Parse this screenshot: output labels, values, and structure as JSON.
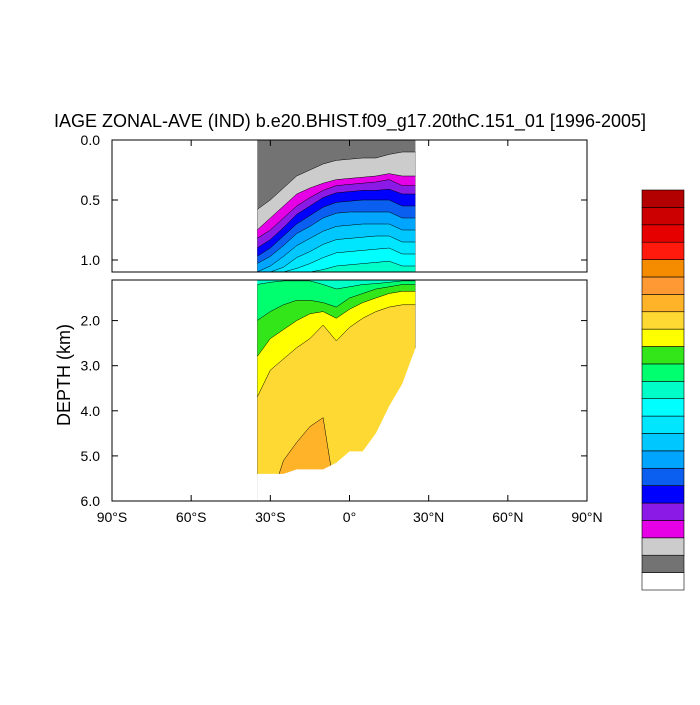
{
  "chart_data": {
    "type": "heatmap",
    "title": "IAGE ZONAL-AVE (IND) b.e20.BHIST.f09_g17.20thC.151_01 [1996-2005]",
    "xlabel": "",
    "ylabel": "DEPTH (km)",
    "xlim": [
      -90,
      90
    ],
    "ylim": [
      6.0,
      0.0
    ],
    "x_tick_labels": [
      {
        "value": -90,
        "label": "90°S"
      },
      {
        "value": -60,
        "label": "60°S"
      },
      {
        "value": -30,
        "label": "30°S"
      },
      {
        "value": 0,
        "label": "0°"
      },
      {
        "value": 30,
        "label": "30°N"
      },
      {
        "value": 60,
        "label": "60°N"
      },
      {
        "value": 90,
        "label": "90°N"
      }
    ],
    "upper_panel_y_ticks": [
      {
        "value": 0.0,
        "label": "0.0"
      },
      {
        "value": 0.5,
        "label": "0.5"
      },
      {
        "value": 1.0,
        "label": "1.0"
      }
    ],
    "lower_panel_y_ticks": [
      {
        "value": 2.0,
        "label": "2.0"
      },
      {
        "value": 3.0,
        "label": "3.0"
      },
      {
        "value": 4.0,
        "label": "4.0"
      },
      {
        "value": 5.0,
        "label": "5.0"
      },
      {
        "value": 6.0,
        "label": "6.0"
      }
    ],
    "panels": [
      {
        "name": "upper",
        "depth_range": [
          0.0,
          1.1
        ]
      },
      {
        "name": "lower",
        "depth_range": [
          1.1,
          6.0
        ]
      }
    ],
    "colorbar": {
      "placement": "right",
      "label_text": "",
      "colors": [
        "#ffffff",
        "#737373",
        "#cccccc",
        "#e600e6",
        "#8c1ae6",
        "#0000ff",
        "#0a5ff0",
        "#00a5ff",
        "#00c8ff",
        "#00e6ff",
        "#00ffff",
        "#00ffc8",
        "#00ff6e",
        "#32e619",
        "#ffff00",
        "#ffd933",
        "#ffb329",
        "#ff9933",
        "#f58c00",
        "#ff1a0d",
        "#e60000",
        "#cc0000",
        "#b30000"
      ]
    },
    "shelves": [
      {
        "x_from": -35,
        "x_to": -30,
        "min": 1
      },
      {
        "x_from": -30,
        "x_to": -25,
        "min": 1
      },
      {
        "x_from": -25,
        "x_to": -20,
        "min": 1
      },
      {
        "x_from": -20,
        "x_to": -15,
        "min": 1
      },
      {
        "x_from": -15,
        "x_to": -10,
        "min": 1
      },
      {
        "x_from": -10,
        "x_to": -5,
        "min": 1
      },
      {
        "x_from": -5,
        "x_to": 0,
        "min": 1
      },
      {
        "x_from": 0,
        "x_to": 5,
        "min": 1
      },
      {
        "x_from": 5,
        "x_to": 10,
        "min": 1
      },
      {
        "x_from": 10,
        "x_to": 15,
        "min": 1
      },
      {
        "x_from": 15,
        "x_to": 20,
        "min": 1
      },
      {
        "x_from": 20,
        "x_to": 25,
        "min": 1
      }
    ],
    "upper_panel_contours": [
      {
        "level_index": 1,
        "depth": [
          0.58,
          0.5,
          0.4,
          0.3,
          0.25,
          0.2,
          0.17,
          0.16,
          0.15,
          0.15,
          0.12,
          0.1
        ],
        "x": [
          -35,
          -30,
          -25,
          -20,
          -15,
          -10,
          -5,
          0,
          5,
          10,
          15,
          20
        ]
      },
      {
        "level_index": 2,
        "depth": [
          0.75,
          0.65,
          0.55,
          0.45,
          0.4,
          0.36,
          0.33,
          0.32,
          0.31,
          0.3,
          0.28,
          0.3
        ],
        "x": [
          -35,
          -30,
          -25,
          -20,
          -15,
          -10,
          -5,
          0,
          5,
          10,
          15,
          20
        ]
      },
      {
        "level_index": 3,
        "depth": [
          0.82,
          0.75,
          0.65,
          0.55,
          0.48,
          0.42,
          0.38,
          0.37,
          0.36,
          0.35,
          0.33,
          0.38
        ],
        "x": [
          -35,
          -30,
          -25,
          -20,
          -15,
          -10,
          -5,
          0,
          5,
          10,
          15,
          20
        ]
      },
      {
        "level_index": 4,
        "depth": [
          0.9,
          0.83,
          0.73,
          0.62,
          0.55,
          0.48,
          0.44,
          0.43,
          0.42,
          0.42,
          0.41,
          0.45
        ],
        "x": [
          -35,
          -30,
          -25,
          -20,
          -15,
          -10,
          -5,
          0,
          5,
          10,
          15,
          20
        ]
      },
      {
        "level_index": 5,
        "depth": [
          0.97,
          0.9,
          0.8,
          0.7,
          0.63,
          0.56,
          0.52,
          0.51,
          0.5,
          0.5,
          0.5,
          0.55
        ],
        "x": [
          -35,
          -30,
          -25,
          -20,
          -15,
          -10,
          -5,
          0,
          5,
          10,
          15,
          20
        ]
      },
      {
        "level_index": 6,
        "depth": [
          1.03,
          0.97,
          0.88,
          0.78,
          0.72,
          0.65,
          0.61,
          0.6,
          0.6,
          0.6,
          0.6,
          0.65
        ],
        "x": [
          -35,
          -30,
          -25,
          -20,
          -15,
          -10,
          -5,
          0,
          5,
          10,
          15,
          20
        ]
      },
      {
        "level_index": 7,
        "depth": [
          1.1,
          1.05,
          0.97,
          0.88,
          0.82,
          0.76,
          0.72,
          0.71,
          0.7,
          0.7,
          0.7,
          0.75
        ],
        "x": [
          -35,
          -30,
          -25,
          -20,
          -15,
          -10,
          -5,
          0,
          5,
          10,
          15,
          20
        ]
      },
      {
        "level_index": 8,
        "depth": [
          1.1,
          1.1,
          1.06,
          0.98,
          0.93,
          0.87,
          0.83,
          0.82,
          0.81,
          0.8,
          0.8,
          0.85
        ],
        "x": [
          -35,
          -30,
          -25,
          -20,
          -15,
          -10,
          -5,
          0,
          5,
          10,
          15,
          20
        ]
      },
      {
        "level_index": 9,
        "depth": [
          1.1,
          1.1,
          1.1,
          1.07,
          1.03,
          0.98,
          0.94,
          0.93,
          0.92,
          0.91,
          0.9,
          0.95
        ],
        "x": [
          -35,
          -30,
          -25,
          -20,
          -15,
          -10,
          -5,
          0,
          5,
          10,
          15,
          20
        ]
      },
      {
        "level_index": 10,
        "depth": [
          1.1,
          1.1,
          1.1,
          1.1,
          1.1,
          1.08,
          1.05,
          1.04,
          1.03,
          1.02,
          1.01,
          1.05
        ],
        "x": [
          -35,
          -30,
          -25,
          -20,
          -15,
          -10,
          -5,
          0,
          5,
          10,
          15,
          20
        ]
      }
    ],
    "lower_panel_contours": [
      {
        "level_index": 11,
        "depth": [
          1.2,
          1.15,
          1.12,
          1.12,
          1.12,
          1.2,
          1.3,
          1.25,
          1.2,
          1.18,
          1.15,
          1.12
        ],
        "x": [
          -35,
          -30,
          -25,
          -20,
          -15,
          -10,
          -5,
          0,
          5,
          10,
          15,
          20
        ]
      },
      {
        "level_index": 12,
        "depth": [
          2.0,
          1.8,
          1.65,
          1.55,
          1.55,
          1.6,
          1.7,
          1.5,
          1.4,
          1.3,
          1.25,
          1.2
        ],
        "x": [
          -35,
          -30,
          -25,
          -20,
          -15,
          -10,
          -5,
          0,
          5,
          10,
          15,
          20
        ]
      },
      {
        "level_index": 13,
        "depth": [
          2.8,
          2.4,
          2.2,
          2.0,
          1.85,
          1.8,
          1.95,
          1.75,
          1.6,
          1.5,
          1.4,
          1.35
        ],
        "x": [
          -35,
          -30,
          -25,
          -20,
          -15,
          -10,
          -5,
          0,
          5,
          10,
          15,
          20
        ]
      },
      {
        "level_index": 14,
        "depth": [
          3.7,
          3.1,
          2.85,
          2.6,
          2.4,
          2.1,
          2.45,
          2.15,
          1.95,
          1.8,
          1.7,
          1.65
        ],
        "x": [
          -35,
          -30,
          -25,
          -20,
          -15,
          -10,
          -5,
          0,
          5,
          10,
          15,
          20
        ]
      },
      {
        "level_index": 15,
        "depth": [
          6.0,
          6.0,
          5.1,
          4.7,
          4.35,
          4.15,
          6.0,
          6.0,
          6.0,
          6.0,
          6.0,
          6.0
        ],
        "x": [
          -35,
          -30,
          -25,
          -20,
          -15,
          -10,
          -5,
          0,
          5,
          10,
          15,
          20
        ]
      }
    ],
    "bottom_depth": [
      {
        "x": -35,
        "depth": 5.4
      },
      {
        "x": -30,
        "depth": 5.4
      },
      {
        "x": -25,
        "depth": 5.4
      },
      {
        "x": -20,
        "depth": 5.3
      },
      {
        "x": -15,
        "depth": 5.3
      },
      {
        "x": -10,
        "depth": 5.3
      },
      {
        "x": -5,
        "depth": 5.15
      },
      {
        "x": 0,
        "depth": 4.9
      },
      {
        "x": 5,
        "depth": 4.9
      },
      {
        "x": 10,
        "depth": 4.5
      },
      {
        "x": 15,
        "depth": 3.9
      },
      {
        "x": 20,
        "depth": 3.4
      },
      {
        "x": 25,
        "depth": 2.6
      }
    ]
  }
}
